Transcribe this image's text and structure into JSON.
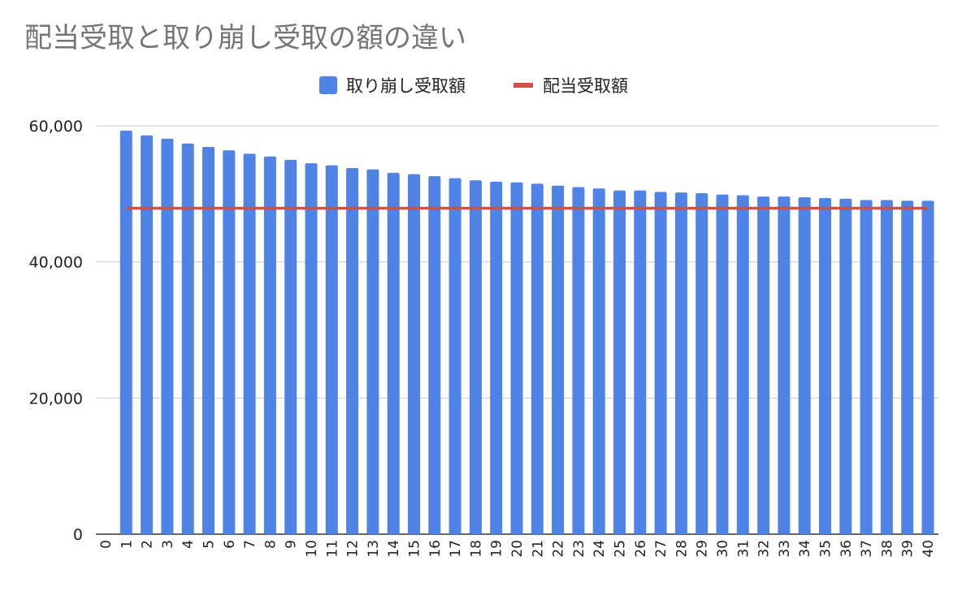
{
  "chart_data": {
    "type": "bar",
    "title": "配当受取と取り崩し受取の額の違い",
    "legend": "top-center",
    "grid": true,
    "ylim": [
      0,
      60000
    ],
    "yticks": [
      "0",
      "20,000",
      "40,000",
      "60,000"
    ],
    "categories": [
      "0",
      "1",
      "2",
      "3",
      "4",
      "5",
      "6",
      "7",
      "8",
      "9",
      "10",
      "11",
      "12",
      "13",
      "14",
      "15",
      "16",
      "17",
      "18",
      "19",
      "20",
      "21",
      "22",
      "23",
      "24",
      "25",
      "26",
      "27",
      "28",
      "29",
      "30",
      "31",
      "32",
      "33",
      "34",
      "35",
      "36",
      "37",
      "38",
      "39",
      "40"
    ],
    "series": [
      {
        "name": "取り崩し受取額",
        "type": "bar",
        "color": "#5083e6",
        "values": [
          null,
          59300,
          58600,
          58100,
          57400,
          56900,
          56400,
          55900,
          55500,
          55000,
          54500,
          54200,
          53800,
          53600,
          53100,
          52900,
          52600,
          52300,
          52000,
          51800,
          51700,
          51500,
          51200,
          51000,
          50800,
          50500,
          50500,
          50300,
          50200,
          50100,
          49900,
          49800,
          49600,
          49600,
          49500,
          49400,
          49300,
          49100,
          49100,
          49000,
          49000
        ]
      },
      {
        "name": "配当受取額",
        "type": "line",
        "color": "#d14f44",
        "value": 47900
      }
    ]
  }
}
